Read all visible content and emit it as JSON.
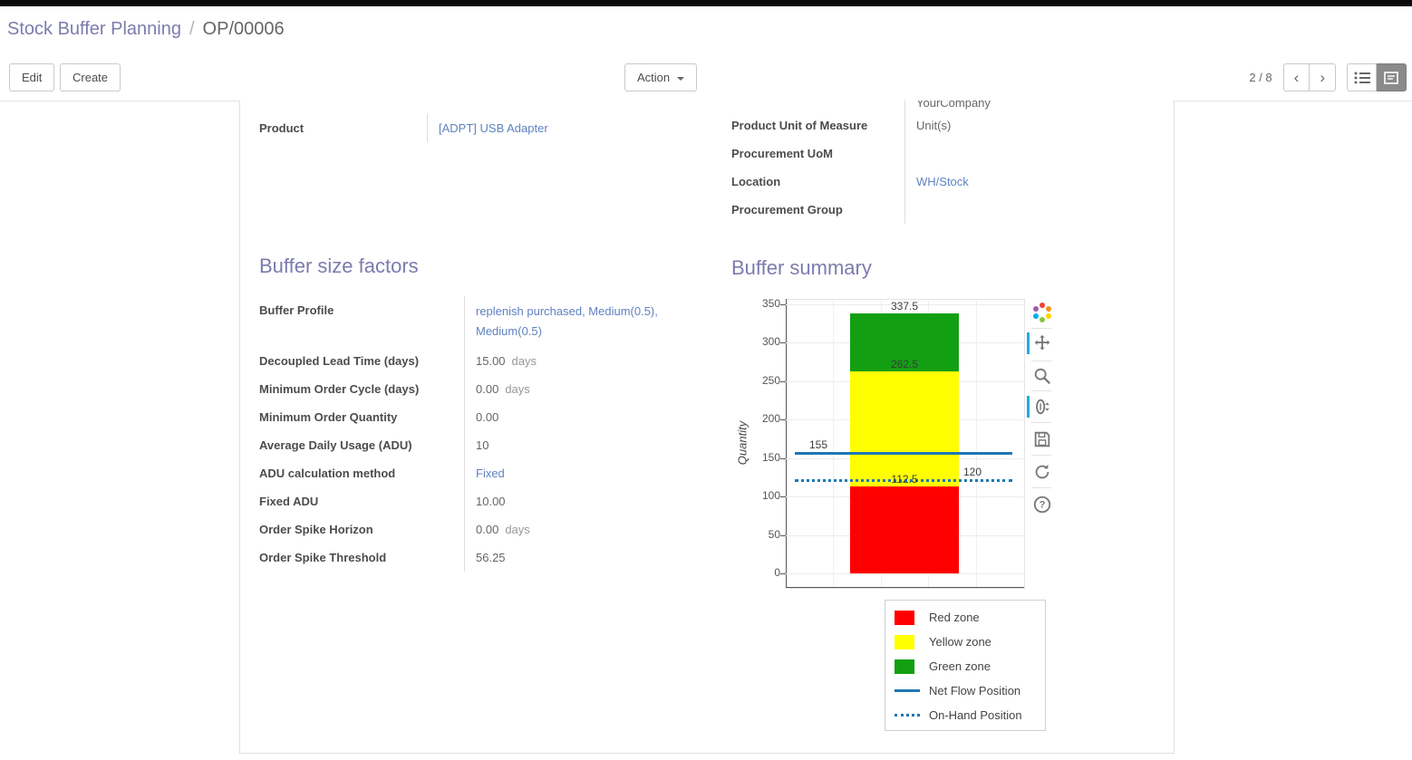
{
  "breadcrumb": {
    "parent": "Stock Buffer Planning",
    "separator": "/",
    "current": "OP/00006"
  },
  "control_panel": {
    "edit_label": "Edit",
    "create_label": "Create",
    "action_label": "Action",
    "pager": "2 / 8",
    "icons": [
      "caret-down-icon",
      "pager-previous-icon",
      "pager-next-icon",
      "list-view-icon",
      "form-view-icon"
    ]
  },
  "form": {
    "top_left_fields": [
      {
        "label": "Product",
        "value": "[ADPT] USB Adapter"
      }
    ],
    "top_right_fields": [
      {
        "label": "",
        "value": "YourCompany"
      },
      {
        "label": "Product Unit of Measure",
        "value": "Unit(s)"
      },
      {
        "label": "Procurement UoM",
        "value": ""
      },
      {
        "label": "Location",
        "value": "WH/Stock"
      },
      {
        "label": "Procurement Group",
        "value": ""
      }
    ],
    "buffer_factors": {
      "title": "Buffer size factors",
      "fields": [
        {
          "label": "Buffer Profile",
          "value": "replenish purchased, Medium(0.5), Medium(0.5)",
          "suffix": ""
        },
        {
          "label": "Decoupled Lead Time (days)",
          "value": "15.00",
          "suffix": "days"
        },
        {
          "label": "Minimum Order Cycle (days)",
          "value": "0.00",
          "suffix": "days"
        },
        {
          "label": "Minimum Order Quantity",
          "value": "0.00",
          "suffix": ""
        },
        {
          "label": "Average Daily Usage (ADU)",
          "value": "10",
          "suffix": ""
        },
        {
          "label": "ADU calculation method",
          "value": "Fixed",
          "suffix": ""
        },
        {
          "label": "Fixed ADU",
          "value": "10.00",
          "suffix": ""
        },
        {
          "label": "Order Spike Horizon",
          "value": "0.00",
          "suffix": "days"
        },
        {
          "label": "Order Spike Threshold",
          "value": "56.25",
          "suffix": ""
        }
      ]
    },
    "buffer_summary": {
      "title": "Buffer summary"
    }
  },
  "chart_data": {
    "type": "bar",
    "title": "",
    "xlabel": "",
    "ylabel": "Quantity",
    "ylim": [
      0,
      350
    ],
    "ytick_step": 50,
    "grid": true,
    "zones": [
      {
        "name": "Red zone",
        "from": 0,
        "to": 112.5,
        "color": "#ff0000"
      },
      {
        "name": "Yellow zone",
        "from": 112.5,
        "to": 262.5,
        "color": "#ffff00"
      },
      {
        "name": "Green zone",
        "from": 262.5,
        "to": 337.5,
        "color": "#12a012"
      }
    ],
    "lines": [
      {
        "name": "Net Flow Position",
        "value": 155,
        "style": "solid",
        "color": "#1f77b4",
        "label_side": "left"
      },
      {
        "name": "On-Hand Position",
        "value": 120,
        "style": "dotted",
        "color": "#1f77b4",
        "label_side": "right"
      }
    ],
    "bar_value_labels": [
      337.5,
      262.5,
      112.5
    ],
    "legend_position": "below-right",
    "toolbar_icons": [
      "bokeh-logo",
      "pan",
      "box-zoom",
      "wheel-zoom",
      "save",
      "reset",
      "help"
    ]
  },
  "colors": {
    "accent": "#7c7bad",
    "link": "#5e82c1",
    "active_tool": "#26aae1"
  }
}
